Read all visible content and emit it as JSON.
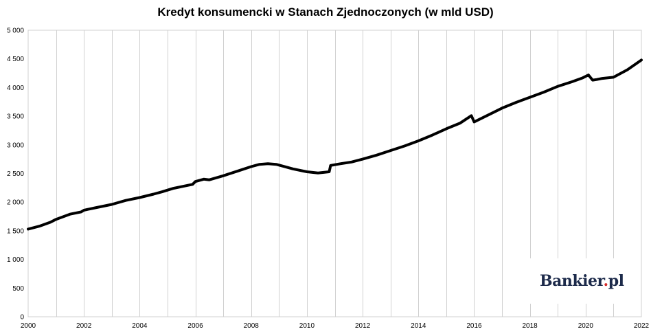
{
  "chart_data": {
    "type": "line",
    "title": "Kredyt konsumencki w Stanach Zjednoczonych (w mld USD)",
    "xlabel": "",
    "ylabel": "",
    "xlim": [
      2000,
      2022
    ],
    "ylim": [
      0,
      5000
    ],
    "x_ticks": [
      "2000",
      "2002",
      "2004",
      "2006",
      "2008",
      "2010",
      "2012",
      "2014",
      "2016",
      "2018",
      "2020",
      "2022"
    ],
    "y_ticks": [
      "0",
      "500",
      "1 000",
      "1 500",
      "2 000",
      "2 500",
      "3 000",
      "3 500",
      "4 000",
      "4 500",
      "5 000"
    ],
    "grid": "vertical",
    "legend": "none",
    "line_color": "#000000",
    "series": [
      {
        "x": [
          2000.0,
          2000.4,
          2000.8,
          2001.0,
          2001.5,
          2001.9,
          2002.0,
          2002.4,
          2003.0,
          2003.5,
          2004.0,
          2004.5,
          2004.8,
          2005.2,
          2005.6,
          2005.9,
          2006.0,
          2006.3,
          2006.5,
          2007.0,
          2007.5,
          2008.0,
          2008.3,
          2008.6,
          2008.9,
          2009.5,
          2010.0,
          2010.4,
          2010.8,
          2010.85,
          2011.2,
          2011.6,
          2012.0,
          2012.5,
          2013.0,
          2013.5,
          2014.0,
          2014.5,
          2015.0,
          2015.5,
          2015.9,
          2016.0,
          2016.5,
          2017.0,
          2017.5,
          2018.0,
          2018.5,
          2019.0,
          2019.5,
          2019.9,
          2020.1,
          2020.25,
          2020.4,
          2020.6,
          2021.0,
          2021.5,
          2022.0
        ],
        "values": [
          1530,
          1580,
          1650,
          1700,
          1790,
          1830,
          1860,
          1900,
          1960,
          2030,
          2080,
          2140,
          2180,
          2240,
          2280,
          2310,
          2360,
          2400,
          2390,
          2460,
          2540,
          2620,
          2660,
          2670,
          2660,
          2580,
          2530,
          2510,
          2530,
          2640,
          2670,
          2700,
          2750,
          2820,
          2900,
          2980,
          3070,
          3170,
          3280,
          3380,
          3510,
          3400,
          3520,
          3640,
          3740,
          3830,
          3920,
          4020,
          4100,
          4170,
          4220,
          4130,
          4140,
          4160,
          4180,
          4310,
          4480
        ]
      }
    ]
  },
  "watermark": {
    "brand": "Bankier",
    "dot": ".",
    "suffix": "pl"
  }
}
